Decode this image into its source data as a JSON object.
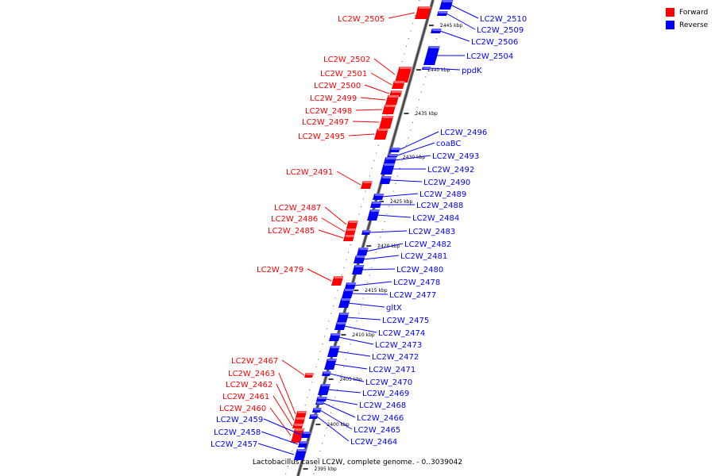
{
  "legend": {
    "forward_label": "Forward",
    "reverse_label": "Reverse",
    "forward_color": "#ff0000",
    "reverse_color": "#0000ff"
  },
  "caption": "Lactobacillus casei LC2W, complete genome. - 0..3039042",
  "ticks": [
    "2445 kbp",
    "2440 kbp",
    "2435 kbp",
    "2430 kbp",
    "2425 kbp",
    "2420 kbp",
    "2415 kbp",
    "2410 kbp",
    "2405 kbp",
    "2400 kbp",
    "2395 kbp"
  ],
  "forward_genes": [
    "LC2W_2505",
    "LC2W_2502",
    "LC2W_2501",
    "LC2W_2500",
    "LC2W_2499",
    "LC2W_2498",
    "LC2W_2497",
    "LC2W_2495",
    "LC2W_2491",
    "LC2W_2487",
    "LC2W_2486",
    "LC2W_2485",
    "LC2W_2479",
    "LC2W_2467",
    "LC2W_2463",
    "LC2W_2462",
    "LC2W_2461",
    "LC2W_2460"
  ],
  "reverse_genes": [
    "LC2W_2510",
    "LC2W_2509",
    "LC2W_2506",
    "LC2W_2504",
    "ppdK",
    "LC2W_2496",
    "coaBC",
    "LC2W_2493",
    "LC2W_2492",
    "LC2W_2490",
    "LC2W_2489",
    "LC2W_2488",
    "LC2W_2484",
    "LC2W_2483",
    "LC2W_2482",
    "LC2W_2481",
    "LC2W_2480",
    "LC2W_2478",
    "LC2W_2477",
    "gltX",
    "LC2W_2475",
    "LC2W_2474",
    "LC2W_2473",
    "LC2W_2472",
    "LC2W_2471",
    "LC2W_2470",
    "LC2W_2469",
    "LC2W_2468",
    "LC2W_2466",
    "LC2W_2465",
    "LC2W_2464",
    "LC2W_2459",
    "LC2W_2458",
    "LC2W_2457"
  ]
}
